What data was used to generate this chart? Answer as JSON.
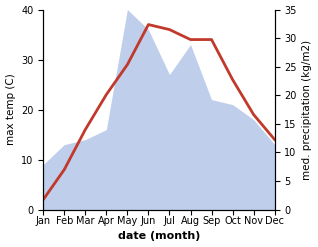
{
  "months": [
    "Jan",
    "Feb",
    "Mar",
    "Apr",
    "May",
    "Jun",
    "Jul",
    "Aug",
    "Sep",
    "Oct",
    "Nov",
    "Dec"
  ],
  "month_indices": [
    1,
    2,
    3,
    4,
    5,
    6,
    7,
    8,
    9,
    10,
    11,
    12
  ],
  "temperature": [
    2,
    8,
    16,
    23,
    29,
    37,
    36,
    34,
    34,
    26,
    19,
    14
  ],
  "precipitation_left_scale": [
    9,
    13,
    14,
    16,
    40,
    36,
    27,
    33,
    22,
    21,
    18,
    13
  ],
  "temp_color": "#c0392b",
  "precip_fill_color": "#b8c9e8",
  "precip_fill_alpha": 0.9,
  "ylim_left": [
    0,
    40
  ],
  "ylim_right": [
    0,
    35
  ],
  "yticks_left": [
    0,
    10,
    20,
    30,
    40
  ],
  "yticks_right": [
    0,
    5,
    10,
    15,
    20,
    25,
    30,
    35
  ],
  "bg_color": "#ffffff",
  "line_width": 2.0,
  "xlabel": "date (month)",
  "ylabel_left": "max temp (C)",
  "ylabel_right": "med. precipitation (kg/m2)",
  "xlabel_fontsize": 8,
  "ylabel_fontsize": 7.5,
  "tick_fontsize": 7
}
